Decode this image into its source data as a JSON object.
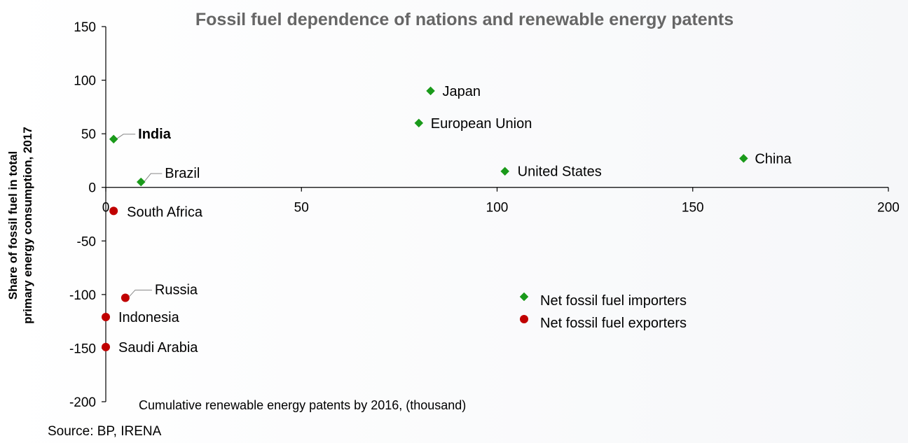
{
  "chart_data": {
    "type": "scatter",
    "title": "Fossil fuel dependence of nations and renewable energy patents",
    "xlabel": "Cumulative renewable energy patents by 2016, (thousand)",
    "ylabel_lines": [
      "Share of fossil fuel in total",
      "primary energy consumption, 2017"
    ],
    "xlim": [
      0,
      200
    ],
    "ylim": [
      -200,
      150
    ],
    "x_ticks": [
      0,
      50,
      100,
      150,
      200
    ],
    "y_ticks": [
      150,
      100,
      50,
      0,
      -50,
      -100,
      -150,
      -200
    ],
    "grid": false,
    "legend_position": "bottom-center",
    "series": [
      {
        "name": "Net fossil fuel importers",
        "marker": "diamond",
        "color": "#1a9a1a",
        "points": [
          {
            "label": "India",
            "x": 2,
            "y": 45,
            "bold": true,
            "leader": true
          },
          {
            "label": "Brazil",
            "x": 9,
            "y": 5,
            "bold": false,
            "leader": true
          },
          {
            "label": "Japan",
            "x": 83,
            "y": 90,
            "bold": false,
            "leader": false
          },
          {
            "label": "European Union",
            "x": 80,
            "y": 60,
            "bold": false,
            "leader": false
          },
          {
            "label": "United States",
            "x": 102,
            "y": 15,
            "bold": false,
            "leader": false
          },
          {
            "label": "China",
            "x": 163,
            "y": 27,
            "bold": false,
            "leader": false
          }
        ]
      },
      {
        "name": "Net fossil fuel exporters",
        "marker": "circle",
        "color": "#c00000",
        "points": [
          {
            "label": "South Africa",
            "x": 2,
            "y": -22,
            "bold": false,
            "leader": false
          },
          {
            "label": "Russia",
            "x": 5,
            "y": -103,
            "bold": false,
            "leader": true
          },
          {
            "label": "Indonesia",
            "x": 0,
            "y": -121,
            "bold": false,
            "leader": false
          },
          {
            "label": "Saudi Arabia",
            "x": 0,
            "y": -149,
            "bold": false,
            "leader": false
          }
        ]
      }
    ],
    "source": "Source: BP, IRENA"
  }
}
